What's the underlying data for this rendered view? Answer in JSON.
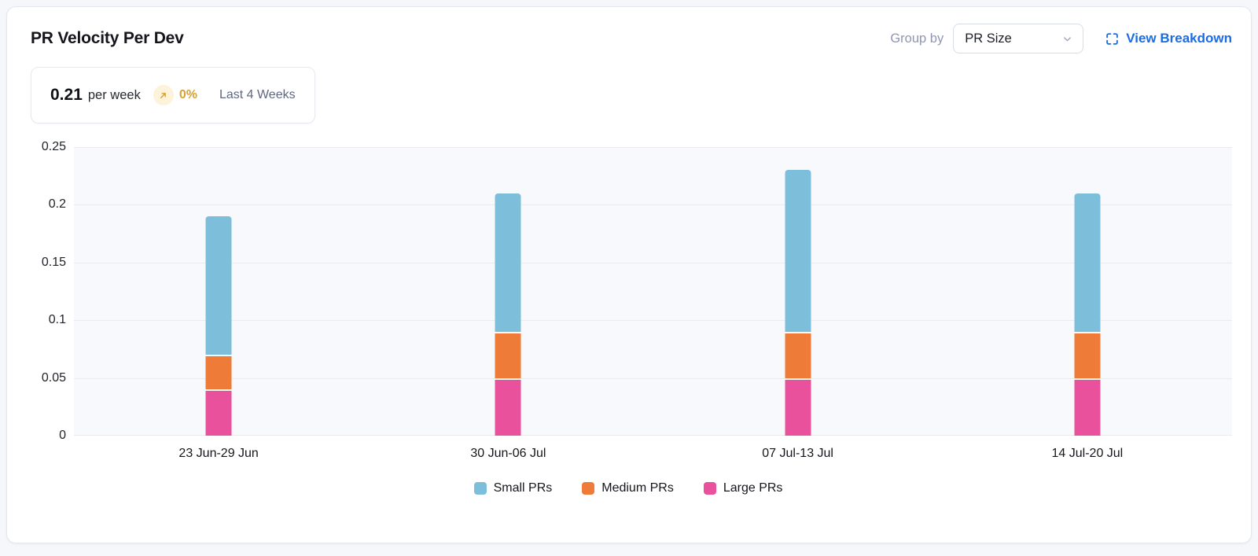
{
  "header": {
    "title": "PR Velocity Per Dev",
    "group_by_label": "Group by",
    "group_by_value": "PR Size",
    "view_breakdown_label": "View Breakdown"
  },
  "summary": {
    "value": "0.21",
    "unit": "per week",
    "trend_icon": "arrow-up-right-icon",
    "trend": "0%",
    "period": "Last 4 Weeks"
  },
  "colors": {
    "link_blue": "#1a6ce6",
    "trend_amber": "#d6a032",
    "trend_circle_bg": "#fcf3da",
    "plot_background": "#f8f9fd",
    "gridline": "#e8ebf1",
    "small_prs": "#7dbfda",
    "medium_prs": "#ee7b38",
    "large_prs": "#e9519c"
  },
  "chart_data": {
    "type": "bar",
    "stacked": true,
    "title": "PR Velocity Per Dev",
    "xlabel": "",
    "ylabel": "",
    "categories": [
      "23 Jun-29 Jun",
      "30 Jun-06 Jul",
      "07 Jul-13 Jul",
      "14 Jul-20 Jul"
    ],
    "series": [
      {
        "name": "Small PRs",
        "color": "#7dbfda",
        "values": [
          0.12,
          0.12,
          0.14,
          0.12
        ]
      },
      {
        "name": "Medium PRs",
        "color": "#ee7b38",
        "values": [
          0.03,
          0.04,
          0.04,
          0.04
        ]
      },
      {
        "name": "Large PRs",
        "color": "#e9519c",
        "values": [
          0.04,
          0.05,
          0.05,
          0.05
        ]
      }
    ],
    "stack_order_bottom_to_top": [
      "Large PRs",
      "Medium PRs",
      "Small PRs"
    ],
    "stack_totals": [
      0.19,
      0.21,
      0.23,
      0.21
    ],
    "ylim": [
      0,
      0.25
    ],
    "yticks": [
      0,
      0.05,
      0.1,
      0.15,
      0.2,
      0.25
    ],
    "grid": true,
    "legend_position": "bottom"
  }
}
